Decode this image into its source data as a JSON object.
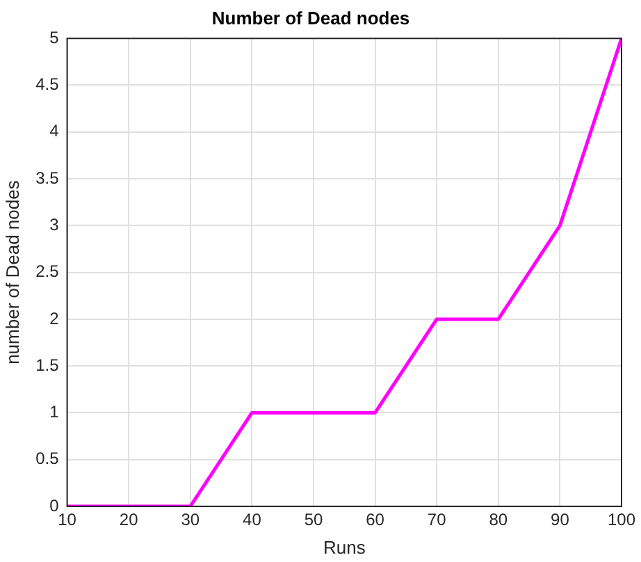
{
  "chart_data": {
    "type": "line",
    "title": "Number of Dead nodes",
    "xlabel": "Runs",
    "ylabel": "number of Dead nodes",
    "x": [
      10,
      20,
      30,
      40,
      50,
      60,
      70,
      80,
      90,
      100
    ],
    "series": [
      {
        "color": "#ff00ff",
        "values": [
          0,
          0,
          0,
          1,
          1,
          1,
          2,
          2,
          3,
          5
        ]
      }
    ],
    "xlim": [
      10,
      100
    ],
    "xticks": [
      10,
      20,
      30,
      40,
      50,
      60,
      70,
      80,
      90,
      100
    ],
    "ylim": [
      0,
      5
    ],
    "yticks": [
      0,
      0.5,
      1,
      1.5,
      2,
      2.5,
      3,
      3.5,
      4,
      4.5,
      5
    ],
    "grid": true,
    "legend": false,
    "marker": "none",
    "line_style": "solid"
  }
}
